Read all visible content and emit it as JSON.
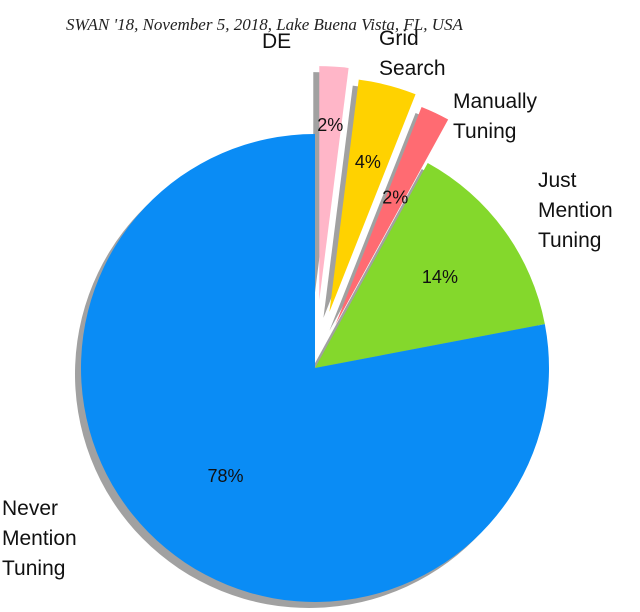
{
  "header": "SWAN '18, November 5, 2018, Lake Buena Vista, FL, USA",
  "chart_data": {
    "type": "pie",
    "categories": [
      "DE",
      "Grid Search",
      "Manually Tuning",
      "Just Mention Tuning",
      "Never Mention Tuning"
    ],
    "values": [
      2,
      4,
      2,
      14,
      78
    ],
    "value_labels": [
      "2%",
      "4%",
      "2%",
      "14%",
      "78%"
    ],
    "colors": [
      "#ffb6c8",
      "#ffd200",
      "#ff6b72",
      "#84d82c",
      "#0a8cf5"
    ]
  }
}
